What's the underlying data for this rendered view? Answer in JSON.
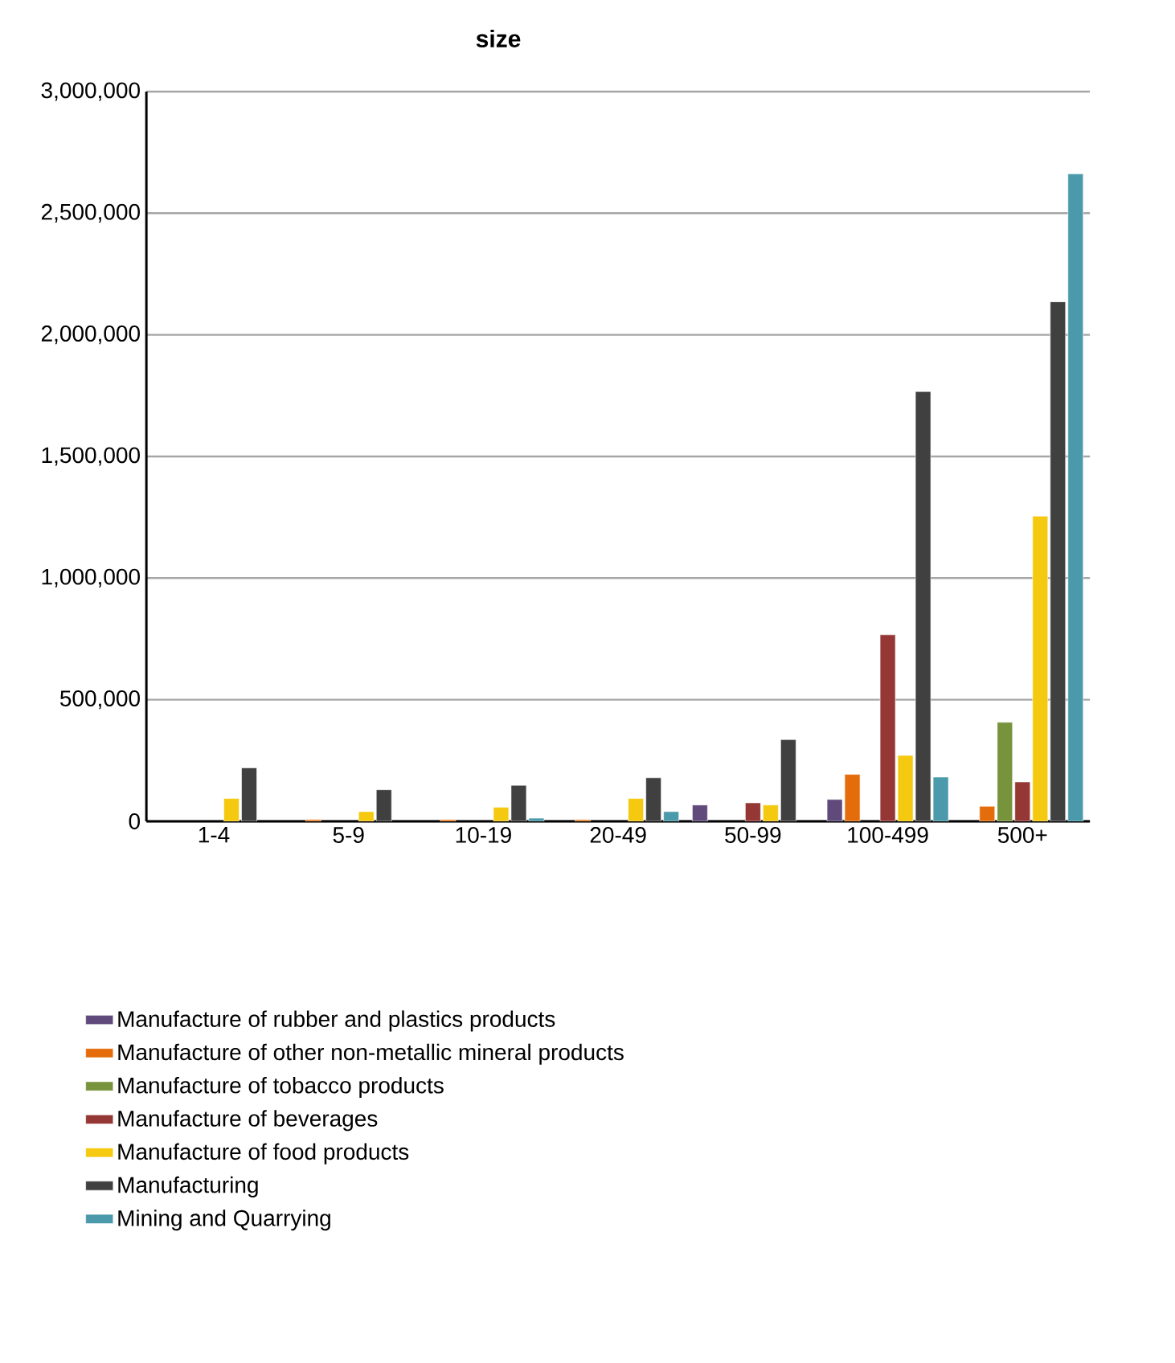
{
  "chart_data": {
    "type": "bar",
    "title": "size",
    "categories": [
      "1-4",
      "5-9",
      "10-19",
      "20-49",
      "50-99",
      "100-499",
      "500+"
    ],
    "series": [
      {
        "name": "Manufacture of rubber and plastics products",
        "color": "#604a7b",
        "values": [
          null,
          null,
          null,
          null,
          67000,
          90000,
          null
        ]
      },
      {
        "name": "Manufacture of other non-metallic mineral products",
        "color": "#e46c0a",
        "values": [
          null,
          7000,
          7000,
          7000,
          null,
          193000,
          62000
        ]
      },
      {
        "name": "Manufacture of tobacco products",
        "color": "#77933c",
        "values": [
          null,
          null,
          null,
          null,
          null,
          null,
          407000
        ]
      },
      {
        "name": "Manufacture of beverages",
        "color": "#953735",
        "values": [
          null,
          null,
          null,
          null,
          76000,
          767000,
          162000
        ]
      },
      {
        "name": "Manufacture of food products",
        "color": "#f5c90f",
        "values": [
          94000,
          40000,
          58000,
          94000,
          67000,
          271000,
          1255000
        ]
      },
      {
        "name": "Manufacturing",
        "color": "#404040",
        "values": [
          220000,
          130000,
          148000,
          179000,
          336000,
          1767000,
          2136000
        ]
      },
      {
        "name": "Mining and Quarrying",
        "color": "#4a9aab",
        "values": [
          null,
          null,
          13000,
          40000,
          null,
          182000,
          2662000
        ]
      }
    ],
    "ylim": [
      0,
      3000000
    ],
    "yticks": [
      {
        "value": 0,
        "label": "0"
      },
      {
        "value": 500000,
        "label": "500,000"
      },
      {
        "value": 1000000,
        "label": "1,000,000"
      },
      {
        "value": 1500000,
        "label": "1,500,000"
      },
      {
        "value": 2000000,
        "label": "2,000,000"
      },
      {
        "value": 2500000,
        "label": "2,500,000"
      },
      {
        "value": 3000000,
        "label": "3,000,000"
      }
    ],
    "grid": "y",
    "legend": "bottom"
  }
}
